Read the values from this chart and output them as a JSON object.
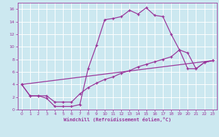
{
  "background_color": "#cce8f0",
  "grid_color": "#ffffff",
  "line_color": "#993399",
  "xlabel": "Windchill (Refroidissement éolien,°C)",
  "xlim": [
    -0.5,
    23.5
  ],
  "ylim": [
    0,
    17
  ],
  "xticks": [
    0,
    1,
    2,
    3,
    4,
    5,
    6,
    7,
    8,
    9,
    10,
    11,
    12,
    13,
    14,
    15,
    16,
    17,
    18,
    19,
    20,
    21,
    22,
    23
  ],
  "yticks": [
    0,
    2,
    4,
    6,
    8,
    10,
    12,
    14,
    16
  ],
  "curve1_x": [
    0,
    1,
    2,
    3,
    4,
    5,
    6,
    7,
    8,
    9,
    10,
    11,
    12,
    13,
    14,
    15,
    16,
    17,
    18,
    19,
    20,
    21,
    22,
    23
  ],
  "curve1_y": [
    4.0,
    2.2,
    2.2,
    1.8,
    0.5,
    0.5,
    0.5,
    0.8,
    6.5,
    10.2,
    14.3,
    14.5,
    14.8,
    15.8,
    15.2,
    16.2,
    15.0,
    14.8,
    12.0,
    9.5,
    6.5,
    6.5,
    7.5,
    7.8
  ],
  "curve2_x": [
    0,
    1,
    2,
    3,
    4,
    5,
    6,
    7,
    8,
    9,
    10,
    11,
    12,
    13,
    14,
    15,
    16,
    17,
    18,
    19,
    20,
    21,
    22,
    23
  ],
  "curve2_y": [
    4.0,
    2.2,
    2.2,
    2.2,
    1.2,
    1.2,
    1.2,
    2.5,
    3.5,
    4.2,
    4.8,
    5.2,
    5.8,
    6.2,
    6.8,
    7.2,
    7.6,
    8.0,
    8.4,
    9.5,
    9.0,
    6.5,
    7.5,
    7.8
  ],
  "curve3_x": [
    0,
    23
  ],
  "curve3_y": [
    4.0,
    7.8
  ]
}
